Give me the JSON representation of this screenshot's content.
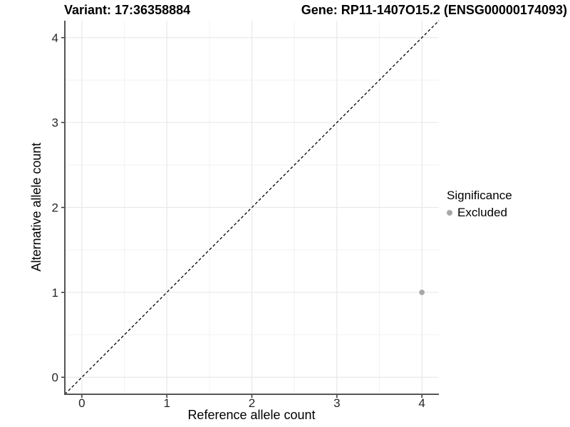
{
  "chart_data": {
    "type": "scatter",
    "title_left": "Variant: 17:36358884",
    "title_right": "Gene: RP11-1407O15.2 (ENSG00000174093)",
    "xlabel": "Reference allele count",
    "ylabel": "Alternative allele count",
    "xlim": [
      -0.2,
      4.2
    ],
    "ylim": [
      -0.2,
      4.2
    ],
    "xticks": [
      0,
      1,
      2,
      3,
      4
    ],
    "yticks": [
      0,
      1,
      2,
      3,
      4
    ],
    "minor_xticks": [
      0.5,
      1.5,
      2.5,
      3.5
    ],
    "minor_yticks": [
      0.5,
      1.5,
      2.5,
      3.5
    ],
    "grid": "major+minor",
    "identity_line": {
      "style": "dashed",
      "color": "#000000",
      "from": -0.2,
      "to": 4.2
    },
    "series": [
      {
        "name": "Excluded",
        "color": "#a8a8a8",
        "points": [
          [
            4,
            1
          ]
        ]
      }
    ],
    "legend": {
      "title": "Significance",
      "position": "right",
      "entries": [
        {
          "label": "Excluded",
          "color": "#a8a8a8"
        }
      ]
    }
  },
  "colors": {
    "axis_line": "#555555",
    "tick_mark": "#333333",
    "tick_label": "#262626",
    "grid_major": "#e8e8e8",
    "grid_minor": "#f2f2f2",
    "point": "#a8a8a8",
    "identity_line": "#000000"
  }
}
